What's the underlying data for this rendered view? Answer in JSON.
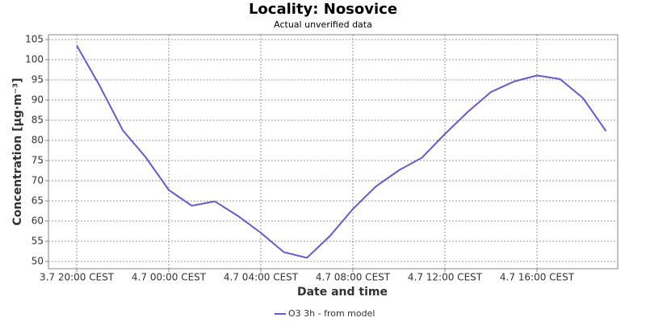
{
  "chart_data": {
    "type": "line",
    "title": "Locality: Nosovice",
    "subtitle": "Actual unverified data",
    "x_label": "Date and time",
    "y_label": "Concentration [µg·m⁻³]",
    "x": [
      20,
      21,
      22,
      23,
      24,
      25,
      26,
      27,
      28,
      29,
      30,
      31,
      32,
      33,
      34,
      35,
      36,
      37,
      38,
      39,
      40,
      41,
      42,
      43
    ],
    "series": [
      {
        "name": "O3 3h - from model",
        "color": "#6a5acd",
        "values": [
          103.5,
          93.5,
          82.5,
          75.8,
          67.7,
          63.8,
          64.9,
          61.3,
          57.1,
          52.3,
          50.9,
          56.3,
          63.0,
          68.6,
          72.6,
          75.7,
          81.6,
          87.1,
          92.0,
          94.6,
          96.1,
          95.2,
          90.5,
          82.3
        ]
      }
    ],
    "xlim": [
      18.77,
      43.51
    ],
    "xticks": [
      {
        "value": 20,
        "label": "3.7 20:00 CEST"
      },
      {
        "value": 24,
        "label": "4.7 00:00 CEST"
      },
      {
        "value": 28,
        "label": "4.7 04:00 CEST"
      },
      {
        "value": 32,
        "label": "4.7 08:00 CEST"
      },
      {
        "value": 36,
        "label": "4.7 12:00 CEST"
      },
      {
        "value": 40,
        "label": "4.7 16:00 CEST"
      }
    ],
    "ylim": [
      48.2,
      106.2
    ],
    "yticks": [
      50,
      55,
      60,
      65,
      70,
      75,
      80,
      85,
      90,
      95,
      100,
      105
    ],
    "grid": true,
    "legend": "bottom"
  }
}
